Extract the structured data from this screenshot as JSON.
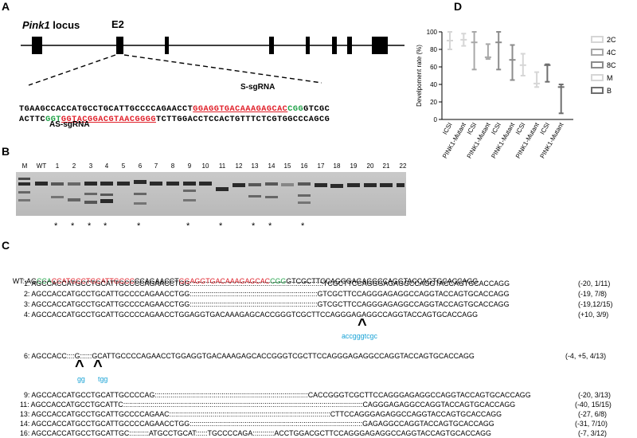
{
  "panelA": {
    "letter": "A",
    "locus_gene": "Pink1",
    "locus_word": " locus",
    "exon_label": "E2",
    "s_sgrna_label": "S-sgRNA",
    "as_sgrna_label": "AS-sgRNA",
    "top_strand": {
      "a": "TGAAGCCACCATGCCTGCATTGCCCCAGAACCT",
      "guide": "GGAGGTGACAAAGAGCAC",
      "pam": "CGG",
      "b": "GTCGC"
    },
    "bottom_strand": {
      "a": "ACTTC",
      "pam": "GGT",
      "guide": "GGTACGGACGTAACGGGG",
      "b": "TCTTGGACCTCCACTGTTTCTCGTGGCCCAGCG"
    }
  },
  "panelB": {
    "letter": "B",
    "lane_labels": [
      "M",
      "WT",
      "1",
      "2",
      "3",
      "4",
      "5",
      "6",
      "7",
      "8",
      "9",
      "10",
      "11",
      "12",
      "13",
      "14",
      "15",
      "16",
      "17",
      "18",
      "19",
      "20",
      "21",
      "22"
    ],
    "star": "*",
    "starred_lanes": [
      "1",
      "2",
      "3",
      "4",
      "6",
      "9",
      "11",
      "13",
      "14",
      "16"
    ]
  },
  "panelC": {
    "letter": "C",
    "wt": {
      "label": "WT:",
      "p1": "AG",
      "p2": "CCA",
      "p3": "CCATGCCTGCATTGCCC",
      "p4": "CCAGAACCT",
      "p5": "GGAGGTGACAAAGAGCAC",
      "p6": "CGG",
      "p7": "GTCGCTTCCAGGGAGAGGCCAGGTACCAGTGCACCAGG"
    },
    "rows1": [
      {
        "label": "1:",
        "seq": "AGCCACCATGCCTGCATTGCCCCAGAACCTGG::::::::::::::::::::::::::::::::::::::::::::::::::::::::::::::::::::TCGCTTCCAGGGAGAGGCCAGGTACCAGTGCACCAGG",
        "note": "(-20, 1/11)"
      },
      {
        "label": "2:",
        "seq": "AGCCACCATGCCTGCATTGCCCCAGAACCTGG:::::::::::::::::::::::::::::::::::::::::::::::::::::::::::::::::GTCGCTTCCAGGGAGAGGCCAGGTACCAGTGCACCAGG",
        "note": "(-19, 7/8)"
      },
      {
        "label": "3:",
        "seq": "AGCCACCATGCCTGCATTGCCCCAGAACCTGG:::::::::::::::::::::::::::::::::::::::::::::::::::::::::::::::::GTCGCTTCCAGGGAGAGGCCAGGTACCAGTGCACCAGG",
        "note": "(-19,12/15)"
      },
      {
        "label": "4:",
        "seq": "AGCCACCATGCCTGCATTGCCCCAGAACCTGGAGGTGACAAAGAGCACCGGGTCGCTTCCAGGGAGAGGCCAGGTACCAGTGCACCAGG",
        "note": "(+10, 3/9)"
      }
    ],
    "ins4": "accgggtcgc",
    "caret": "^",
    "row6": {
      "label": "6:",
      "seq": "AGCCACC::::G::::::GCATTGCCCCAGAACCTGGAGGTGACAAAGAGCACCGGGTCGCTTCCAGGGAGAGGCCAGGTACCAGTGCACCAGG",
      "note": "(-4, +5, 4/13)"
    },
    "ins6a": "gg",
    "ins6b": "tgg",
    "rows2": [
      {
        "label": "9:",
        "seq": "AGCCACCATGCCTGCATTGCCCCAG::::::::::::::::::::::::::::::::::::::::::::::::::::::::::::::::::::::::::::::CACCGGGTCGCTTCCAGGGAGAGGCCAGGTACCAGTGCACCAGG",
        "note": "(-20, 3/13)"
      },
      {
        "label": "11:",
        "seq": "AGCCACCATGCCTGCATTC::::::::::::::::::::::::::::::::::::::::::::::::::::::::::::::::::::::::::::::::::::::::::::::::::::::::::::::::::::::::::CAGGGAGAGGCCAGGTACCAGTGCACCAGG",
        "note": "(-40, 15/15)"
      },
      {
        "label": "13:",
        "seq": "AGCCACCATGCCTGCATTGCCCCAGAAC::::::::::::::::::::::::::::::::::::::::::::::::::::::::::::::::::::::::::::::::::CTTCCAGGGAGAGGCCAGGTACCAGTGCACCAGG",
        "note": "(-27, 6/8)"
      },
      {
        "label": "14:",
        "seq": "AGCCACCATGCCTGCATTGCCCCAGAACCTGG::::::::::::::::::::::::::::::::::::::::::::::::::::::::::::::::::::::::::::::::::::::::GAGAGGCCAGGTACCAGTGCACCAGG",
        "note": "(-31, 7/10)"
      },
      {
        "label": "16:",
        "seq": "AGCCACCATGCCTGCATTGC::::::::::ATGCCTGCAT::::::TGCCCCAGA:::::::::::ACCTGGACGCTTCCAGGGAGAGGCCAGGTACCAGTGCACCAGG",
        "note": "(-7, 3/12)"
      }
    ]
  },
  "panelD": {
    "letter": "D",
    "chart_data": {
      "type": "box",
      "ylabel": "Develpoment rate (%)",
      "ylim": [
        0,
        100
      ],
      "yticks": [
        0,
        20,
        40,
        60,
        80,
        100
      ],
      "categories": [
        "ICSI",
        "PINK1-Mutant",
        "ICSI",
        "PINK1-Mutant",
        "ICSI",
        "PINK1-Mutant",
        "ICSI",
        "PINK1-Mutant",
        "ICSI",
        "PINK1-Mutant"
      ],
      "legend": [
        "2C",
        "4C",
        "8C",
        "M",
        "B"
      ],
      "legend_placement": "right",
      "colors": [
        "#d6d6d6",
        "#a8a8a8",
        "#8c8c8c",
        "#d6d6d6",
        "#6e6e6e"
      ],
      "groups": [
        {
          "stage": "2C",
          "color_index": 0,
          "boxes": [
            {
              "min": 80,
              "max": 100,
              "median": 90
            },
            {
              "min": 84,
              "max": 98,
              "median": 91
            }
          ]
        },
        {
          "stage": "4C",
          "color_index": 1,
          "boxes": [
            {
              "min": 57,
              "max": 100,
              "median": 88
            },
            {
              "min": 69,
              "max": 86,
              "median": 71
            }
          ]
        },
        {
          "stage": "8C",
          "color_index": 2,
          "boxes": [
            {
              "min": 57,
              "max": 100,
              "median": 88
            },
            {
              "min": 45,
              "max": 85,
              "median": 68
            }
          ]
        },
        {
          "stage": "M",
          "color_index": 3,
          "boxes": [
            {
              "min": 50,
              "max": 75,
              "median": 62
            },
            {
              "min": 37,
              "max": 54,
              "median": 41
            }
          ]
        },
        {
          "stage": "B",
          "color_index": 4,
          "boxes": [
            {
              "min": 43,
              "max": 63,
              "median": 62
            },
            {
              "min": 7,
              "max": 40,
              "median": 37
            }
          ]
        }
      ]
    }
  }
}
